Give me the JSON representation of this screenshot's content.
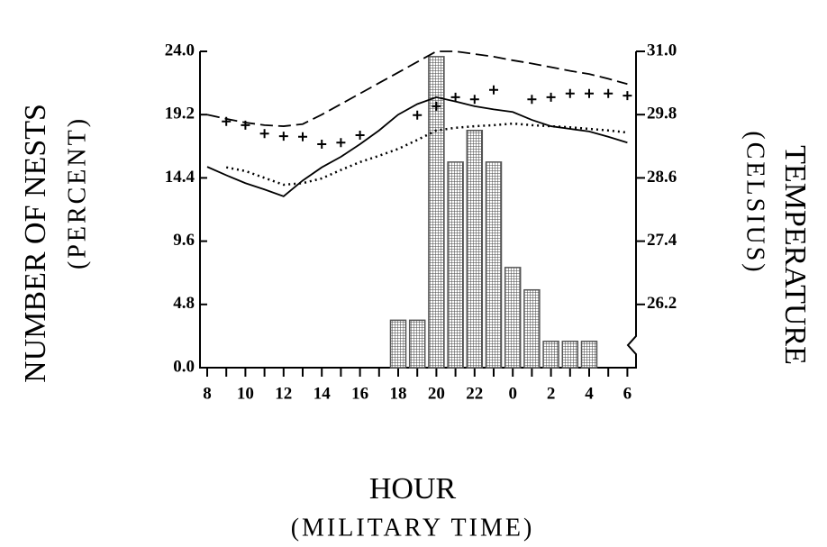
{
  "chart_data": {
    "type": "bar",
    "ylabel": [
      "NUMBER OF NESTS",
      "(PERCENT)"
    ],
    "y2label": [
      "TEMPERATURE",
      "(CELSIUS)"
    ],
    "xlabel": [
      "HOUR",
      "(MILITARY TIME)"
    ],
    "categories": [
      8,
      null,
      10,
      null,
      12,
      null,
      14,
      null,
      16,
      null,
      18,
      null,
      20,
      null,
      22,
      null,
      0,
      null,
      2,
      null,
      4,
      null,
      6
    ],
    "ylim": [
      0,
      24
    ],
    "yticks": [
      {
        "value": 0,
        "label": "0.0"
      },
      4.8,
      9.6,
      14.4,
      19.2,
      {
        "value": 24,
        "label": "24.0"
      }
    ],
    "y2lim": [
      25.0,
      31.0
    ],
    "y2ticks": [
      26.2,
      27.4,
      28.6,
      29.8,
      {
        "value": 31,
        "label": "31.0"
      }
    ],
    "series": [
      {
        "mark": "bar",
        "color": "#555555",
        "values": [
          0,
          0,
          0,
          0,
          0,
          0,
          0,
          0,
          0,
          0,
          3.6,
          3.6,
          23.6,
          15.6,
          18.0,
          15.6,
          7.6,
          5.9,
          2.0,
          2.0,
          2.0,
          0,
          0
        ]
      },
      {
        "mark": "dashed",
        "color": "#000000",
        "axis": "y2",
        "values": [
          29.8,
          29.72,
          29.65,
          29.6,
          29.58,
          29.62,
          29.8,
          30.0,
          30.2,
          30.4,
          30.6,
          30.8,
          31.0,
          31.0,
          30.95,
          30.9,
          30.83,
          30.77,
          30.7,
          30.63,
          30.57,
          30.48,
          30.38
        ]
      },
      {
        "mark": "solid",
        "color": "#000000",
        "axis": "y2",
        "values": [
          28.81,
          28.65,
          28.5,
          28.38,
          28.25,
          28.55,
          28.8,
          29.0,
          29.24,
          29.5,
          29.8,
          30.0,
          30.13,
          30.05,
          29.96,
          29.9,
          29.85,
          29.7,
          29.58,
          29.53,
          29.48,
          29.38,
          29.27
        ]
      },
      {
        "mark": "dotted",
        "color": "#000000",
        "axis": "y2",
        "values": [
          null,
          28.8,
          28.73,
          28.6,
          28.47,
          28.5,
          28.59,
          28.75,
          28.9,
          29.02,
          29.15,
          29.32,
          29.5,
          29.55,
          29.58,
          29.6,
          29.63,
          29.6,
          29.58,
          29.56,
          29.53,
          29.5,
          29.46
        ]
      },
      {
        "mark": "cross",
        "color": "#000000",
        "axis": "y2",
        "values": [
          null,
          29.67,
          29.6,
          29.44,
          29.39,
          29.38,
          29.24,
          29.27,
          29.41,
          null,
          null,
          29.79,
          29.96,
          30.13,
          30.09,
          30.27,
          null,
          30.09,
          30.13,
          30.2,
          30.2,
          30.2,
          30.16
        ]
      }
    ]
  }
}
